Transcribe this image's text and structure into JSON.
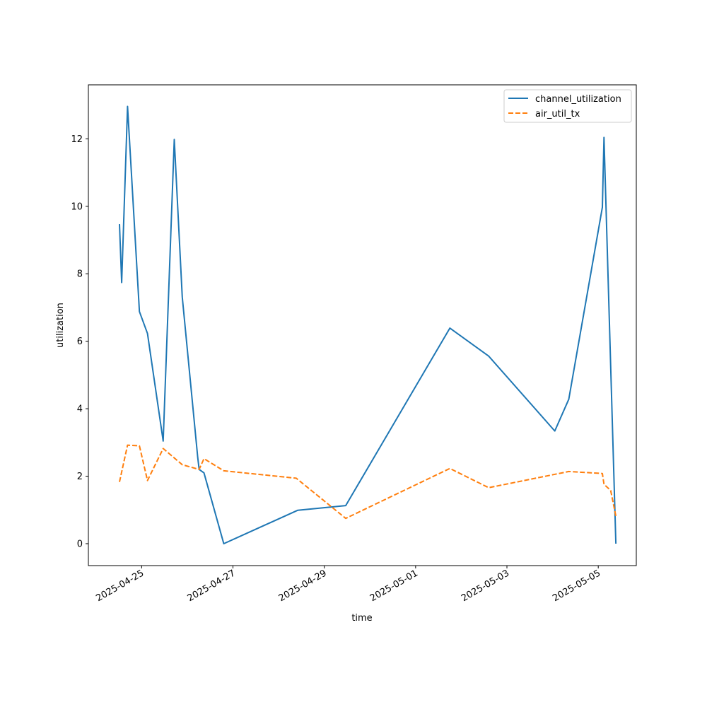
{
  "chart_data": {
    "type": "line",
    "title": "",
    "xlabel": "time",
    "ylabel": "utilization",
    "xlim": [
      "2025-04-23T20:00",
      "2025-05-05T20:00"
    ],
    "ylim": [
      -0.65,
      13.6
    ],
    "yticks": [
      0,
      2,
      4,
      6,
      8,
      10,
      12
    ],
    "xticks": [
      "2025-04-25",
      "2025-04-27",
      "2025-04-29",
      "2025-05-01",
      "2025-05-03",
      "2025-05-05"
    ],
    "grid": false,
    "legend": "top-right",
    "series": [
      {
        "name": "channel_utilization",
        "color": "#1f77b4",
        "style": "solid",
        "points": [
          [
            "2025-04-24T12:20",
            9.47
          ],
          [
            "2025-04-24T13:30",
            7.74
          ],
          [
            "2025-04-24T16:35",
            12.96
          ],
          [
            "2025-04-24T22:50",
            6.88
          ],
          [
            "2025-04-25T03:05",
            6.23
          ],
          [
            "2025-04-25T11:20",
            3.04
          ],
          [
            "2025-04-25T17:10",
            11.98
          ],
          [
            "2025-04-25T21:20",
            7.31
          ],
          [
            "2025-04-26T05:30",
            2.55
          ],
          [
            "2025-04-26T06:15",
            2.2
          ],
          [
            "2025-04-26T08:45",
            2.1
          ],
          [
            "2025-04-26T19:10",
            0.0
          ],
          [
            "2025-04-28T10:05",
            0.99
          ],
          [
            "2025-04-29T11:15",
            1.13
          ],
          [
            "2025-05-01T18:00",
            6.39
          ],
          [
            "2025-05-02T14:25",
            5.56
          ],
          [
            "2025-05-04T01:10",
            3.34
          ],
          [
            "2025-05-04T08:30",
            4.28
          ],
          [
            "2025-05-05T02:10",
            9.97
          ],
          [
            "2025-05-05T03:00",
            12.04
          ],
          [
            "2025-05-05T09:15",
            0.0
          ]
        ]
      },
      {
        "name": "air_util_tx",
        "color": "#ff7f0e",
        "style": "dashed",
        "points": [
          [
            "2025-04-24T12:20",
            1.83
          ],
          [
            "2025-04-24T16:35",
            2.92
          ],
          [
            "2025-04-24T22:50",
            2.9
          ],
          [
            "2025-04-25T03:05",
            1.87
          ],
          [
            "2025-04-25T11:20",
            2.82
          ],
          [
            "2025-04-25T21:20",
            2.34
          ],
          [
            "2025-04-26T06:15",
            2.2
          ],
          [
            "2025-04-26T08:45",
            2.52
          ],
          [
            "2025-04-26T19:10",
            2.16
          ],
          [
            "2025-04-28T09:15",
            1.94
          ],
          [
            "2025-04-29T11:15",
            0.75
          ],
          [
            "2025-05-01T18:00",
            2.23
          ],
          [
            "2025-05-02T14:25",
            1.66
          ],
          [
            "2025-05-04T08:30",
            2.14
          ],
          [
            "2025-05-05T02:10",
            2.08
          ],
          [
            "2025-05-05T03:00",
            1.76
          ],
          [
            "2025-05-05T06:30",
            1.58
          ],
          [
            "2025-05-05T09:15",
            0.82
          ]
        ]
      }
    ]
  }
}
